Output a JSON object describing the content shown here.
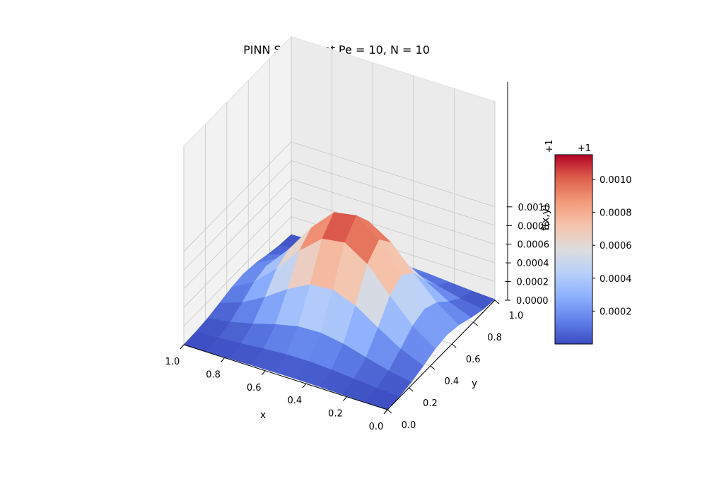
{
  "chart_data": {
    "type": "surface",
    "title": "PINN Solution at Pe = 10, N = 10",
    "xlabel": "x",
    "ylabel": "y",
    "zlabel": "f(x,y)",
    "offset_label": "+1",
    "colorbar_offset_label": "+1",
    "xlim": [
      0,
      1
    ],
    "ylim": [
      0,
      1
    ],
    "zlim": [
      0,
      0.00115
    ],
    "x_ticks": [
      "0.0",
      "0.2",
      "0.4",
      "0.6",
      "0.8",
      "1.0"
    ],
    "y_ticks": [
      "0.0",
      "0.2",
      "0.4",
      "0.6",
      "0.8",
      "1.0"
    ],
    "z_ticks": [
      "0.0000",
      "0.0002",
      "0.0004",
      "0.0006",
      "0.0008",
      "0.0010"
    ],
    "colorbar_ticks": [
      "0.0002",
      "0.0004",
      "0.0006",
      "0.0008",
      "0.0010"
    ],
    "colorbar_range": [
      0.0,
      0.00115
    ],
    "colormap": "coolwarm",
    "grid_points": 10,
    "z_peak": 0.00113,
    "x_peak": 0.48,
    "y_peak": 0.55,
    "x_sigma": 0.24,
    "y_sigma": 0.19,
    "grid": true
  }
}
